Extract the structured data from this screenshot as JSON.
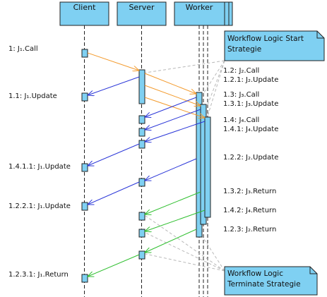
{
  "lifelines": {
    "client": "Client",
    "server": "Server",
    "worker": "Worker"
  },
  "notes": {
    "start": [
      "Workflow Logic Start",
      "Strategie"
    ],
    "terminate": [
      "Workflow Logic",
      "Terminate Strategie"
    ]
  },
  "messages": {
    "m1": "1: J₁.Call",
    "m1_1": "1.1: J₁.Update",
    "m1_2": "1.2: J₂.Call",
    "m1_2_1": "1.2.1: J₂.Update",
    "m1_3": "1.3: J₃.Call",
    "m1_3_1": "1.3.1: J₃.Update",
    "m1_4": "1.4: J₄.Call",
    "m1_4_1": "1.4.1: J₄.Update",
    "m1_4_1_1": "1.4.1.1: J₁.Update",
    "m1_2_2": "1.2.2: J₂.Update",
    "m1_2_2_1": "1.2.2.1: J₁.Update",
    "m1_3_2": "1.3.2: J₃.Return",
    "m1_4_2": "1.4.2: J₄.Return",
    "m1_2_3": "1.2.3: J₂.Return",
    "m1_2_3_1": "1.2.3.1: J₁.Return"
  },
  "colors": {
    "header_fill": "#7fd0f2",
    "activation_fill": "#7fd0f2",
    "call_arrow": "#f39a2c",
    "update_arrow": "#2a36d8",
    "return_arrow": "#2fbf2f",
    "note_link": "#b8b8b8"
  }
}
